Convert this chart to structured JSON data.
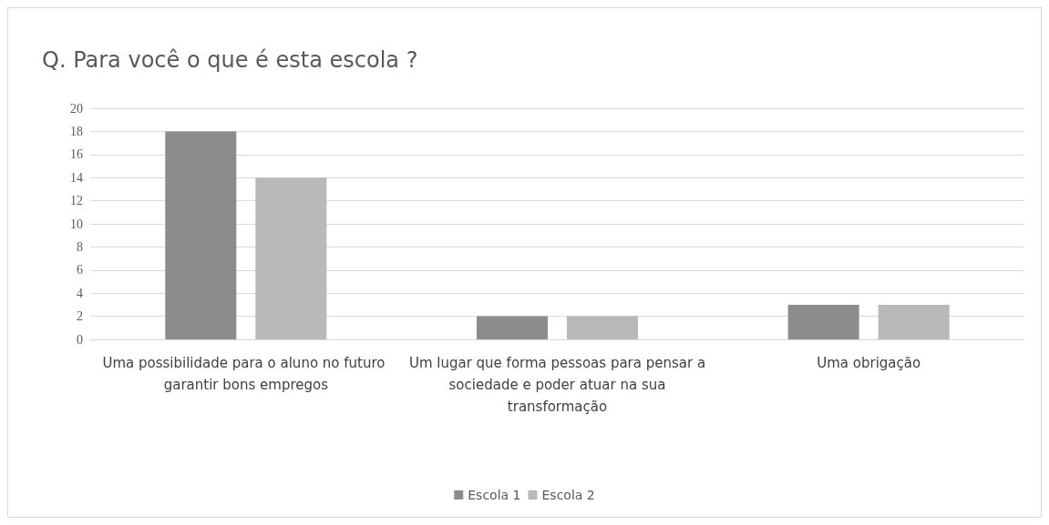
{
  "chart_data": {
    "type": "bar",
    "title": "Q. Para você o que é esta escola ?",
    "categories": [
      "Uma possibilidade para o aluno no futuro garantir bons empregos",
      "Um lugar que forma pessoas para pensar a sociedade e poder atuar na sua transformação",
      "Uma obrigação"
    ],
    "series": [
      {
        "name": "Escola 1",
        "color": "#8c8c8c",
        "values": [
          18,
          2,
          3
        ]
      },
      {
        "name": "Escola 2",
        "color": "#b9b9b9",
        "values": [
          14,
          2,
          3
        ]
      }
    ],
    "ylim": [
      0,
      20
    ],
    "yticks": [
      0,
      2,
      4,
      6,
      8,
      10,
      12,
      14,
      16,
      18,
      20
    ],
    "grid": "y",
    "legend": "bottom"
  }
}
